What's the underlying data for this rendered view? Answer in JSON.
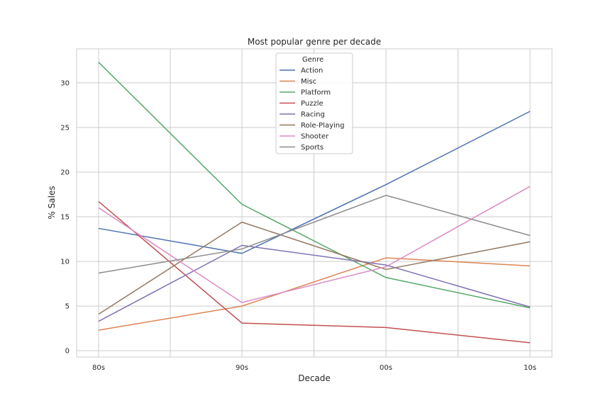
{
  "chart_data": {
    "type": "line",
    "title": "Most popular genre per decade",
    "xlabel": "Decade",
    "ylabel": "% Sales",
    "categories": [
      "80s",
      "90s",
      "00s",
      "10s"
    ],
    "ylim": [
      -0.7,
      33.8
    ],
    "yticks": [
      0,
      5,
      10,
      15,
      20,
      25,
      30
    ],
    "grid": true,
    "legend": {
      "title": "Genre",
      "placement": "upper-center"
    },
    "series": [
      {
        "name": "Action",
        "color": "#4c72b0",
        "values": [
          13.7,
          10.9,
          18.6,
          26.8
        ]
      },
      {
        "name": "Misc",
        "color": "#dd8452",
        "values": [
          2.3,
          5.0,
          10.4,
          9.5
        ]
      },
      {
        "name": "Platform",
        "color": "#55a868",
        "values": [
          32.3,
          16.4,
          8.2,
          4.8
        ]
      },
      {
        "name": "Puzzle",
        "color": "#c44e52",
        "values": [
          16.7,
          3.1,
          2.6,
          0.9
        ]
      },
      {
        "name": "Racing",
        "color": "#8172b3",
        "values": [
          3.3,
          11.8,
          9.6,
          4.9
        ]
      },
      {
        "name": "Role-Playing",
        "color": "#937860",
        "values": [
          4.1,
          14.4,
          9.1,
          12.2
        ]
      },
      {
        "name": "Shooter",
        "color": "#da8bc3",
        "values": [
          16.0,
          5.4,
          9.4,
          18.4
        ]
      },
      {
        "name": "Sports",
        "color": "#8c8c8c",
        "values": [
          8.7,
          11.4,
          17.4,
          12.9
        ]
      }
    ]
  }
}
